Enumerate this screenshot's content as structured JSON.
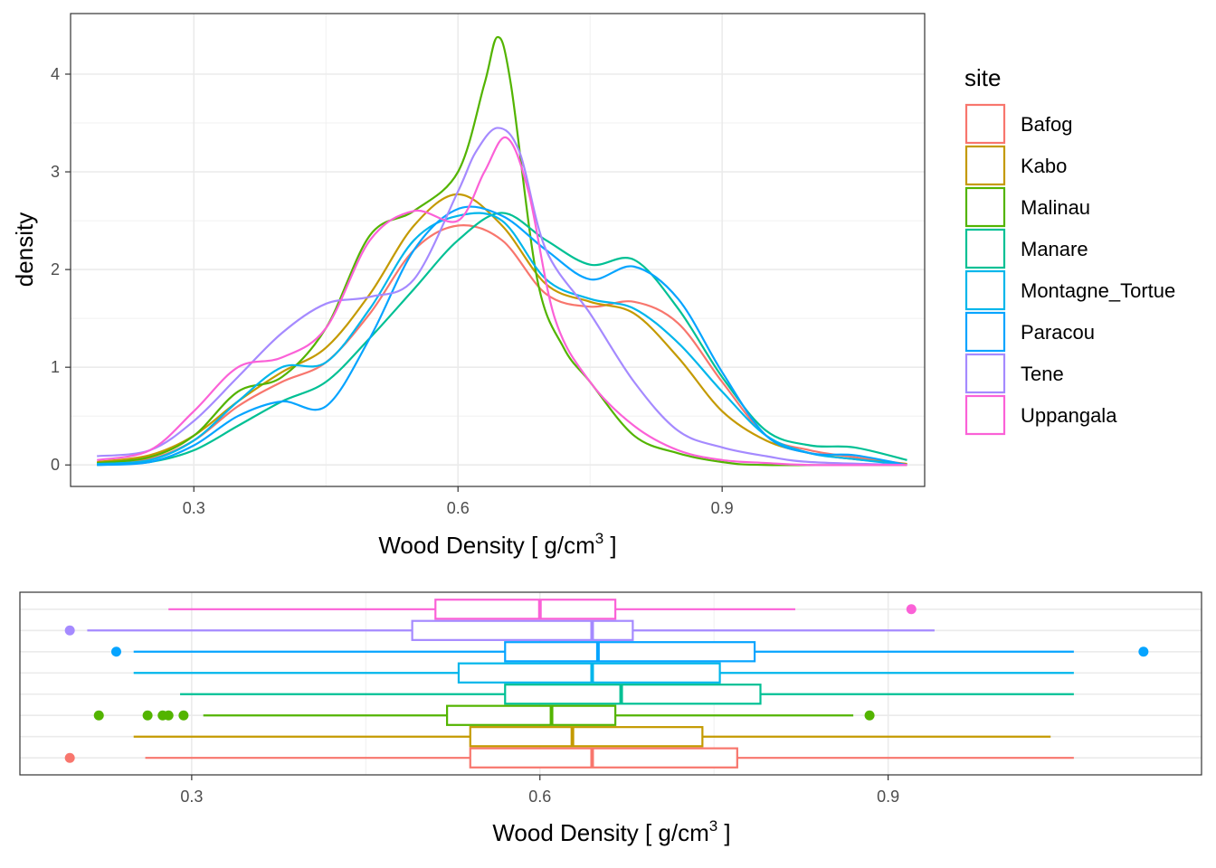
{
  "chart_data": [
    {
      "type": "line",
      "subtype": "density",
      "xlabel": "Wood Density [ g/cm",
      "xlabel_superscript": "3",
      "xlabel_suffix": " ]",
      "ylabel": "density",
      "xlim": [
        0.16,
        1.13
      ],
      "ylim": [
        -0.22,
        4.62
      ],
      "x_ticks": [
        0.3,
        0.6,
        0.9
      ],
      "x_tick_labels": [
        "0.3",
        "0.6",
        "0.9"
      ],
      "x_minor_ticks": [
        0.45,
        0.75
      ],
      "y_ticks": [
        0,
        1,
        2,
        3,
        4
      ],
      "y_tick_labels": [
        "0",
        "1",
        "2",
        "3",
        "4"
      ],
      "grid": true,
      "legend": {
        "title": "site",
        "placement": "right",
        "entries": [
          "Bafog",
          "Kabo",
          "Malinau",
          "Manare",
          "Montagne_Tortue",
          "Paracou",
          "Tene",
          "Uppangala"
        ]
      },
      "series": [
        {
          "name": "Bafog",
          "color": "#F8766D",
          "x": [
            0.19,
            0.25,
            0.3,
            0.35,
            0.4,
            0.45,
            0.5,
            0.55,
            0.6,
            0.65,
            0.7,
            0.75,
            0.8,
            0.85,
            0.9,
            0.95,
            1.0,
            1.05,
            1.11
          ],
          "y": [
            0.02,
            0.06,
            0.25,
            0.6,
            0.85,
            1.05,
            1.55,
            2.2,
            2.45,
            2.3,
            1.75,
            1.62,
            1.67,
            1.45,
            0.85,
            0.3,
            0.15,
            0.08,
            0.01
          ]
        },
        {
          "name": "Kabo",
          "color": "#C49A00",
          "x": [
            0.19,
            0.25,
            0.3,
            0.35,
            0.4,
            0.45,
            0.5,
            0.55,
            0.6,
            0.65,
            0.7,
            0.75,
            0.8,
            0.85,
            0.9,
            0.95,
            1.0,
            1.05,
            1.11
          ],
          "y": [
            0.03,
            0.1,
            0.3,
            0.65,
            0.95,
            1.2,
            1.75,
            2.45,
            2.77,
            2.45,
            1.85,
            1.67,
            1.55,
            1.1,
            0.55,
            0.25,
            0.12,
            0.06,
            0.01
          ]
        },
        {
          "name": "Malinau",
          "color": "#53B400",
          "x": [
            0.19,
            0.25,
            0.3,
            0.35,
            0.4,
            0.45,
            0.5,
            0.55,
            0.6,
            0.63,
            0.645,
            0.66,
            0.69,
            0.72,
            0.75,
            0.8,
            0.85,
            0.9,
            0.95,
            1.11
          ],
          "y": [
            0.02,
            0.08,
            0.3,
            0.75,
            0.9,
            1.4,
            2.35,
            2.6,
            3.0,
            3.9,
            4.38,
            3.9,
            1.9,
            1.2,
            0.85,
            0.3,
            0.12,
            0.03,
            0.0,
            0.0
          ]
        },
        {
          "name": "Manare",
          "color": "#00C094",
          "x": [
            0.19,
            0.25,
            0.3,
            0.35,
            0.4,
            0.45,
            0.5,
            0.55,
            0.6,
            0.65,
            0.7,
            0.75,
            0.8,
            0.85,
            0.9,
            0.95,
            1.0,
            1.05,
            1.11
          ],
          "y": [
            0.0,
            0.03,
            0.15,
            0.4,
            0.65,
            0.85,
            1.3,
            1.8,
            2.3,
            2.58,
            2.3,
            2.05,
            2.1,
            1.6,
            0.9,
            0.35,
            0.2,
            0.18,
            0.05
          ]
        },
        {
          "name": "Montagne_Tortue",
          "color": "#00B6EB",
          "x": [
            0.19,
            0.25,
            0.3,
            0.35,
            0.4,
            0.45,
            0.5,
            0.55,
            0.6,
            0.65,
            0.7,
            0.75,
            0.8,
            0.85,
            0.9,
            0.95,
            1.0,
            1.05,
            1.11
          ],
          "y": [
            0.01,
            0.05,
            0.25,
            0.65,
            1.0,
            1.05,
            1.6,
            2.3,
            2.55,
            2.5,
            1.9,
            1.7,
            1.6,
            1.25,
            0.75,
            0.3,
            0.12,
            0.06,
            0.0
          ]
        },
        {
          "name": "Paracou",
          "color": "#06A4FF",
          "x": [
            0.19,
            0.25,
            0.3,
            0.35,
            0.4,
            0.45,
            0.5,
            0.55,
            0.6,
            0.65,
            0.7,
            0.75,
            0.8,
            0.85,
            0.9,
            0.95,
            1.0,
            1.05,
            1.11
          ],
          "y": [
            0.0,
            0.03,
            0.2,
            0.5,
            0.65,
            0.6,
            1.3,
            2.2,
            2.62,
            2.55,
            2.2,
            1.9,
            2.03,
            1.7,
            0.95,
            0.3,
            0.12,
            0.1,
            0.0
          ]
        },
        {
          "name": "Tene",
          "color": "#A58AFF",
          "x": [
            0.19,
            0.25,
            0.3,
            0.35,
            0.4,
            0.45,
            0.5,
            0.55,
            0.6,
            0.62,
            0.645,
            0.67,
            0.7,
            0.75,
            0.8,
            0.85,
            0.9,
            0.95,
            1.0,
            1.11
          ],
          "y": [
            0.09,
            0.15,
            0.45,
            0.9,
            1.35,
            1.65,
            1.72,
            1.9,
            2.8,
            3.2,
            3.45,
            3.2,
            2.2,
            1.55,
            0.85,
            0.35,
            0.18,
            0.09,
            0.03,
            0.0
          ]
        },
        {
          "name": "Uppangala",
          "color": "#FB61D7",
          "x": [
            0.19,
            0.25,
            0.3,
            0.35,
            0.4,
            0.45,
            0.5,
            0.55,
            0.6,
            0.63,
            0.655,
            0.68,
            0.71,
            0.75,
            0.8,
            0.85,
            0.9,
            0.95,
            1.0,
            1.11
          ],
          "y": [
            0.05,
            0.15,
            0.55,
            1.0,
            1.1,
            1.4,
            2.3,
            2.6,
            2.5,
            3.0,
            3.35,
            2.8,
            1.5,
            0.85,
            0.4,
            0.15,
            0.05,
            0.02,
            0.0,
            0.0
          ]
        }
      ]
    },
    {
      "type": "boxplot",
      "orientation": "horizontal",
      "xlabel": "Wood Density [ g/cm",
      "xlabel_superscript": "3",
      "xlabel_suffix": " ]",
      "xlim": [
        0.152,
        1.17
      ],
      "x_ticks": [
        0.3,
        0.6,
        0.9
      ],
      "x_tick_labels": [
        "0.3",
        "0.6",
        "0.9"
      ],
      "x_minor_ticks": [
        0.45,
        0.75
      ],
      "grid": true,
      "boxes": [
        {
          "name": "Bafog",
          "color": "#F8766D",
          "whisker_low": 0.26,
          "q1": 0.54,
          "median": 0.645,
          "q3": 0.77,
          "whisker_high": 1.06,
          "outliers": [
            0.195
          ]
        },
        {
          "name": "Kabo",
          "color": "#C49A00",
          "whisker_low": 0.25,
          "q1": 0.54,
          "median": 0.628,
          "q3": 0.74,
          "whisker_high": 1.04,
          "outliers": []
        },
        {
          "name": "Malinau",
          "color": "#53B400",
          "whisker_low": 0.31,
          "q1": 0.52,
          "median": 0.61,
          "q3": 0.665,
          "whisker_high": 0.87,
          "outliers": [
            0.22,
            0.262,
            0.275,
            0.28,
            0.293,
            0.884
          ]
        },
        {
          "name": "Manare",
          "color": "#00C094",
          "whisker_low": 0.29,
          "q1": 0.57,
          "median": 0.67,
          "q3": 0.79,
          "whisker_high": 1.06,
          "outliers": []
        },
        {
          "name": "Montagne_Tortue",
          "color": "#00B6EB",
          "whisker_low": 0.25,
          "q1": 0.53,
          "median": 0.645,
          "q3": 0.755,
          "whisker_high": 1.06,
          "outliers": []
        },
        {
          "name": "Paracou",
          "color": "#06A4FF",
          "whisker_low": 0.25,
          "q1": 0.57,
          "median": 0.65,
          "q3": 0.785,
          "whisker_high": 1.06,
          "outliers": [
            0.235,
            1.12
          ]
        },
        {
          "name": "Tene",
          "color": "#A58AFF",
          "whisker_low": 0.21,
          "q1": 0.49,
          "median": 0.645,
          "q3": 0.68,
          "whisker_high": 0.94,
          "outliers": [
            0.195
          ]
        },
        {
          "name": "Uppangala",
          "color": "#FB61D7",
          "whisker_low": 0.28,
          "q1": 0.51,
          "median": 0.6,
          "q3": 0.665,
          "whisker_high": 0.82,
          "outliers": [
            0.92
          ]
        }
      ]
    }
  ]
}
